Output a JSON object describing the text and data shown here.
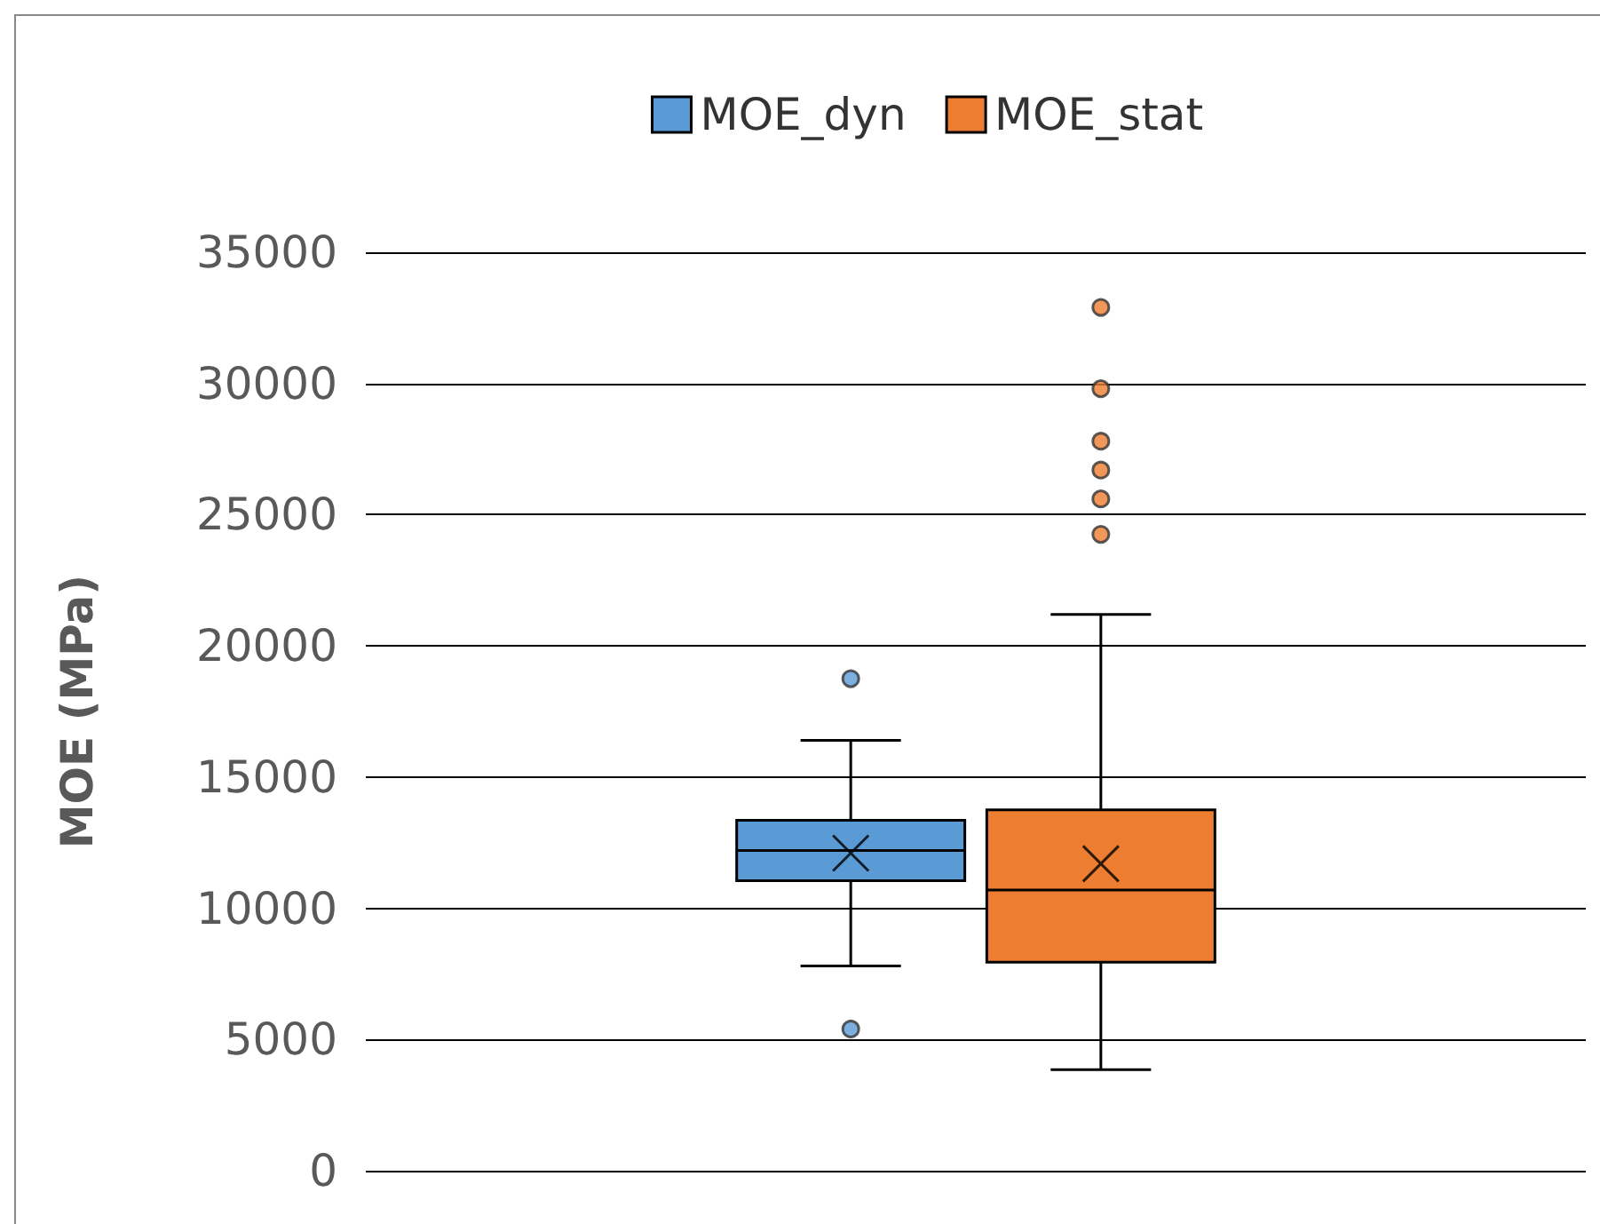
{
  "chart_data": {
    "type": "box",
    "ylabel": "MOE (MPa)",
    "categories": [
      null
    ],
    "series": [
      {
        "name": "MOE_dyn",
        "color": "#5b9bd5",
        "boxes": [
          {
            "low": 7800,
            "q1": 11050,
            "median": 12200,
            "q3": 13350,
            "high": 16400,
            "mean": 12100,
            "outliers": [
              18750,
              5400
            ]
          }
        ]
      },
      {
        "name": "MOE_stat",
        "color": "#ed7d31",
        "boxes": [
          {
            "low": 3850,
            "q1": 7950,
            "median": 10700,
            "q3": 13750,
            "high": 21200,
            "mean": 11700,
            "outliers": [
              32900,
              29800,
              27800,
              26700,
              25600,
              24250
            ]
          }
        ]
      }
    ],
    "ylim": [
      0,
      35000
    ],
    "yticks": [
      0,
      5000,
      10000,
      15000,
      20000,
      25000,
      30000,
      35000
    ],
    "grid": "y",
    "legend": "top"
  }
}
